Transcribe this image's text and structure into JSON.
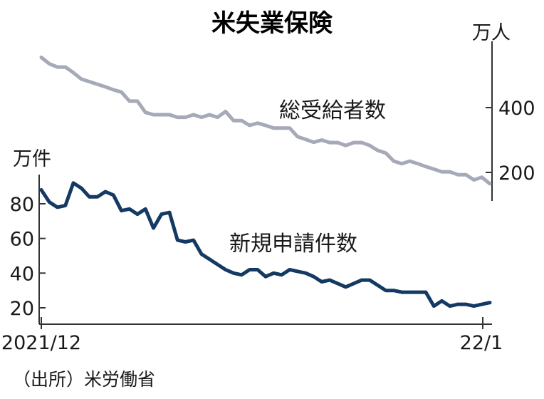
{
  "chart_data": {
    "type": "line",
    "title": "米失業保険",
    "x_start_label": "2021/12",
    "x_end_label": "22/1",
    "source": "（出所）米労働省",
    "left_axis": {
      "unit": "万件",
      "ticks": [
        20,
        40,
        60,
        80
      ],
      "range": [
        14,
        100
      ]
    },
    "right_axis": {
      "unit": "万人",
      "ticks": [
        200,
        400
      ],
      "range": [
        120,
        620
      ]
    },
    "series": [
      {
        "name": "総受給者数",
        "axis": "right",
        "color": "#a6a9b8",
        "values": [
          555,
          535,
          525,
          525,
          508,
          488,
          480,
          472,
          464,
          455,
          448,
          420,
          420,
          385,
          378,
          378,
          378,
          370,
          370,
          378,
          370,
          378,
          370,
          388,
          360,
          360,
          345,
          352,
          345,
          337,
          337,
          337,
          310,
          302,
          293,
          300,
          292,
          292,
          283,
          292,
          292,
          283,
          268,
          260,
          235,
          227,
          235,
          227,
          218,
          210,
          202,
          202,
          193,
          193,
          177,
          185,
          165
        ]
      },
      {
        "name": "新規申請件数",
        "axis": "left",
        "color": "#143a64",
        "values": [
          88,
          81,
          78,
          79,
          92,
          89,
          84,
          84,
          87,
          85,
          76,
          77,
          74,
          77,
          66,
          74,
          75,
          59,
          58,
          59,
          51,
          48,
          45,
          42,
          40,
          39,
          42,
          42,
          38,
          40,
          39,
          42,
          41,
          40,
          38,
          35,
          36,
          34,
          32,
          34,
          36,
          36,
          33,
          30,
          30,
          29,
          29,
          29,
          29,
          21,
          24,
          21,
          22,
          22,
          21,
          22,
          23
        ]
      }
    ]
  }
}
